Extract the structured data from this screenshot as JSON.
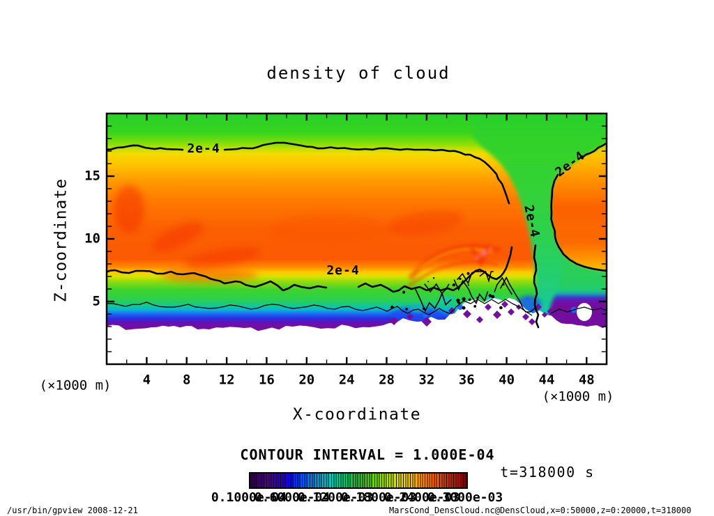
{
  "window": {
    "background": "#ffffff"
  },
  "chart_data": {
    "type": "heatmap",
    "title": "density of cloud",
    "xlabel": "X-coordinate",
    "ylabel": "Z-coordinate",
    "x_axis_unit": "(×1000 m)",
    "y_axis_unit": "(×1000 m)",
    "x_ticks": [
      4,
      8,
      12,
      16,
      20,
      24,
      28,
      32,
      36,
      40,
      44,
      48
    ],
    "y_ticks": [
      5,
      10,
      15
    ],
    "x_range": [
      0,
      50
    ],
    "y_range": [
      0,
      20
    ],
    "contour_interval_label": "CONTOUR INTERVAL = 1.000E-04",
    "contour_line_label": "2e-4",
    "time_label": "t=318000 s",
    "colorbar": {
      "tick_labels": [
        "0.1000e-04",
        "0.6000e-04",
        "0.1200e-03",
        "0.1800e-03",
        "0.2400e-03",
        "0.3000e-03"
      ],
      "colors": [
        "#2e0050",
        "#3c006e",
        "#4a0090",
        "#3a00b4",
        "#2400d2",
        "#0c08e8",
        "#0032f8",
        "#0058ff",
        "#007cf8",
        "#00a0e8",
        "#00c0d0",
        "#00ccac",
        "#00c884",
        "#06c45e",
        "#16c43a",
        "#2cc81e",
        "#4cd00a",
        "#74d800",
        "#9cdc00",
        "#c0e000",
        "#dce000",
        "#f0d400",
        "#fcbc00",
        "#ffa000",
        "#ff8200",
        "#fc6200",
        "#f04400",
        "#dc2c00",
        "#c01800",
        "#8a0404"
      ]
    }
  },
  "footer": {
    "left": "/usr/bin/gpview  2008-12-21",
    "right": "MarsCond_DensCloud.nc@DensCloud,x=0:50000,z=0:20000,t=318000"
  }
}
